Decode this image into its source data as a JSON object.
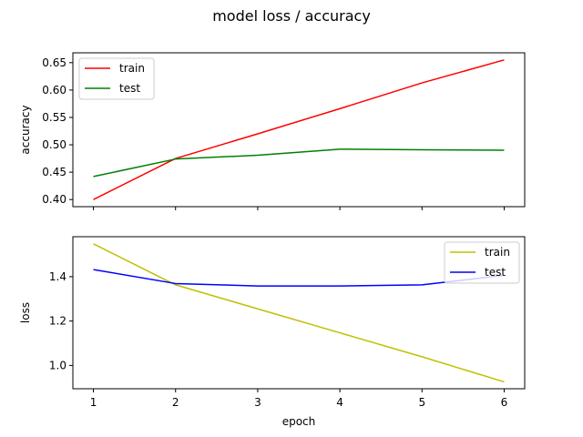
{
  "chart_data": {
    "type": "line",
    "title": "model loss / accuracy",
    "x": [
      1,
      2,
      3,
      4,
      5,
      6
    ],
    "xlabel": "epoch",
    "xticks": [
      "1",
      "2",
      "3",
      "4",
      "5",
      "6"
    ],
    "subplots": [
      {
        "ylabel": "accuracy",
        "ylim": [
          0.387,
          0.668
        ],
        "yticks": [
          0.4,
          0.45,
          0.5,
          0.55,
          0.6,
          0.65
        ],
        "yticklabels": [
          "0.40",
          "0.45",
          "0.50",
          "0.55",
          "0.60",
          "0.65"
        ],
        "legend_position": "upper-left",
        "series": [
          {
            "name": "train",
            "color": "#ff0000",
            "values": [
              0.4,
              0.475,
              0.52,
              0.566,
              0.613,
              0.655
            ]
          },
          {
            "name": "test",
            "color": "#008000",
            "values": [
              0.442,
              0.474,
              0.481,
              0.492,
              0.491,
              0.49
            ]
          }
        ]
      },
      {
        "ylabel": "loss",
        "ylim": [
          0.895,
          1.58
        ],
        "yticks": [
          1.0,
          1.2,
          1.4
        ],
        "yticklabels": [
          "1.0",
          "1.2",
          "1.4"
        ],
        "legend_position": "upper-right",
        "series": [
          {
            "name": "train",
            "color": "#bfbf00",
            "values": [
              1.548,
              1.363,
              1.255,
              1.147,
              1.039,
              0.926
            ]
          },
          {
            "name": "test",
            "color": "#0000ff",
            "values": [
              1.432,
              1.369,
              1.358,
              1.358,
              1.363,
              1.406
            ]
          }
        ]
      }
    ]
  }
}
